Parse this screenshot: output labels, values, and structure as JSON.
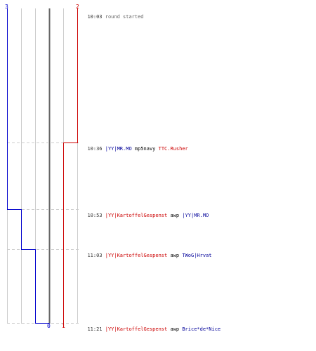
{
  "scoreboard": {
    "team_blue_start": "3",
    "team_red_start": "2",
    "team_blue_end": "0",
    "team_red_end": "1"
  },
  "colors": {
    "blue": "#0000cc",
    "red": "#cc0000",
    "grid": "#cccccc",
    "zero_line": "#666666",
    "dash": "#cccccc"
  },
  "events": [
    {
      "time": "10:03",
      "note": "round started"
    },
    {
      "time": "10:36",
      "killer": "|YY|MR.MO",
      "killer_team": "blue",
      "weapon": "mp5navy",
      "victim": "TTC.Rusher",
      "victim_team": "red"
    },
    {
      "time": "10:53",
      "killer": "|YY|KartoffelGespenst",
      "killer_team": "red",
      "weapon": "awp",
      "victim": "|YY|MR.MO",
      "victim_team": "blue"
    },
    {
      "time": "11:03",
      "killer": "|YY|KartoffelGespenst",
      "killer_team": "red",
      "weapon": "awp",
      "victim": "TWoG|Hrvat",
      "victim_team": "blue"
    },
    {
      "time": "11:21",
      "killer": "|YY|KartoffelGespenst",
      "killer_team": "red",
      "weapon": "awp",
      "victim": "Brice*de*Nice",
      "victim_team": "blue"
    }
  ]
}
